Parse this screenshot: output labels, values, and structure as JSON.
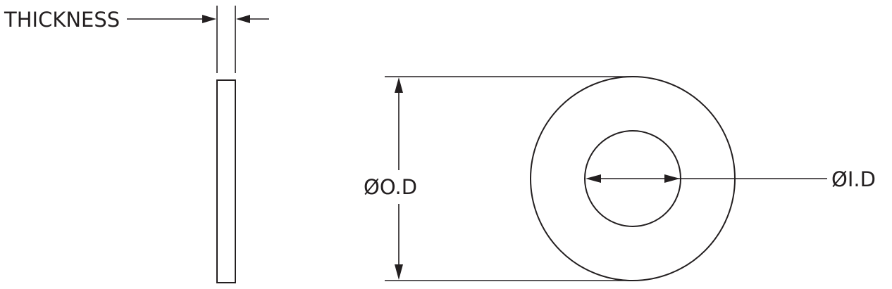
{
  "labels": {
    "thickness": "THICKNESS",
    "outer_diameter": "ØO.D",
    "inner_diameter": "ØI.D"
  },
  "colors": {
    "ink": "#231f20",
    "background": "#ffffff"
  }
}
